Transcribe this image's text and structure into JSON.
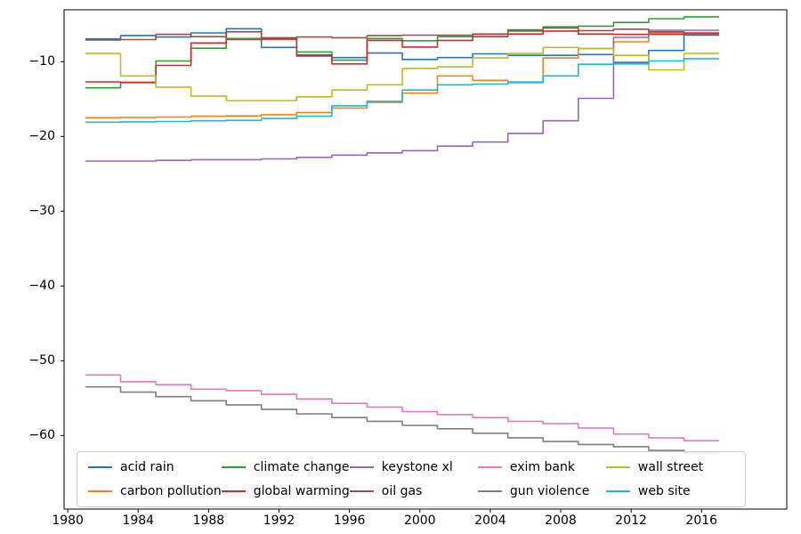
{
  "chart_data": {
    "type": "line",
    "step_mode": "post",
    "title": "",
    "xlabel": "",
    "ylabel": "",
    "grid": false,
    "legend_position": "lower-center-inside",
    "legend_columns": 5,
    "x": [
      1981,
      1983,
      1985,
      1987,
      1989,
      1991,
      1993,
      1995,
      1997,
      1999,
      2001,
      2003,
      2005,
      2007,
      2009,
      2011,
      2013,
      2015,
      2017
    ],
    "xtick_values": [
      1980,
      1984,
      1988,
      1992,
      1996,
      2000,
      2004,
      2008,
      2012,
      2016
    ],
    "xtick_labels": [
      "1980",
      "1984",
      "1988",
      "1992",
      "1996",
      "2000",
      "2004",
      "2008",
      "2012",
      "2016"
    ],
    "ytick_values": [
      -10,
      -20,
      -30,
      -40,
      -50,
      -60
    ],
    "ytick_labels": [
      "−10",
      "−20",
      "−30",
      "−40",
      "−50",
      "−60"
    ],
    "xlim": [
      1979.79,
      2020.84
    ],
    "ylim": [
      -69.84,
      -3.06
    ],
    "series": [
      {
        "name": "acid rain",
        "color": "#1f77b4",
        "values": [
          -7.1,
          -6.5,
          -6.7,
          -6.15,
          -5.6,
          -8.1,
          -9.1,
          -9.45,
          -8.85,
          -9.7,
          -9.45,
          -8.95,
          -9.15,
          -9.15,
          -9.05,
          -10.1,
          -8.5,
          -6.3,
          -6.3
        ]
      },
      {
        "name": "carbon pollution",
        "color": "#ff7f0e",
        "values": [
          -17.5,
          -17.45,
          -17.4,
          -17.3,
          -17.25,
          -17.1,
          -16.8,
          -16.2,
          -15.45,
          -14.2,
          -11.9,
          -12.5,
          -12.7,
          -9.5,
          -8.25,
          -7.35,
          -6.15,
          -6.2,
          -6.2
        ]
      },
      {
        "name": "climate change",
        "color": "#2ca02c",
        "values": [
          -13.5,
          -12.75,
          -9.9,
          -8.2,
          -6.9,
          -6.9,
          -8.7,
          -9.8,
          -6.9,
          -7.2,
          -6.65,
          -6.3,
          -5.9,
          -5.35,
          -5.25,
          -4.75,
          -4.25,
          -4.0,
          -4.0
        ]
      },
      {
        "name": "global warming",
        "color": "#d62728",
        "values": [
          -12.7,
          -12.8,
          -10.5,
          -7.5,
          -6.0,
          -7.0,
          -9.25,
          -10.3,
          -7.15,
          -8.05,
          -7.15,
          -6.65,
          -6.3,
          -5.9,
          -6.3,
          -6.35,
          -6.35,
          -6.15,
          -6.15
        ]
      },
      {
        "name": "keystone xl",
        "color": "#9467bd",
        "values": [
          -23.3,
          -23.3,
          -23.2,
          -23.1,
          -23.1,
          -23.0,
          -22.8,
          -22.5,
          -22.2,
          -21.9,
          -21.3,
          -20.75,
          -19.6,
          -17.9,
          -14.9,
          -6.75,
          -5.8,
          -5.8,
          -5.8
        ]
      },
      {
        "name": "oil gas",
        "color": "#8c564b",
        "values": [
          -6.95,
          -7.05,
          -6.35,
          -6.65,
          -7.05,
          -6.8,
          -6.7,
          -6.8,
          -6.5,
          -6.45,
          -6.45,
          -6.35,
          -5.75,
          -5.5,
          -5.85,
          -5.65,
          -6.0,
          -6.45,
          -6.45
        ]
      },
      {
        "name": "exim bank",
        "color": "#e377c2",
        "values": [
          -51.9,
          -52.8,
          -53.2,
          -53.8,
          -54.0,
          -54.5,
          -55.1,
          -55.7,
          -56.2,
          -56.8,
          -57.2,
          -57.6,
          -58.1,
          -58.4,
          -59.0,
          -59.8,
          -60.3,
          -60.7,
          -60.7
        ]
      },
      {
        "name": "gun violence",
        "color": "#7f7f7f",
        "values": [
          -53.5,
          -54.2,
          -54.8,
          -55.35,
          -55.9,
          -56.5,
          -57.1,
          -57.6,
          -58.1,
          -58.65,
          -59.1,
          -59.7,
          -60.3,
          -60.8,
          -61.2,
          -61.5,
          -62.0,
          -62.3,
          -62.3
        ]
      },
      {
        "name": "wall street",
        "color": "#bcbd22",
        "values": [
          -8.9,
          -11.9,
          -13.4,
          -14.6,
          -15.2,
          -15.2,
          -14.7,
          -13.8,
          -13.1,
          -10.9,
          -10.7,
          -9.5,
          -8.9,
          -8.1,
          -8.25,
          -9.15,
          -11.1,
          -8.9,
          -8.9
        ]
      },
      {
        "name": "web site",
        "color": "#17becf",
        "values": [
          -18.1,
          -18.05,
          -18.0,
          -17.9,
          -17.85,
          -17.6,
          -17.3,
          -15.9,
          -15.3,
          -13.8,
          -13.1,
          -13.0,
          -12.8,
          -11.9,
          -10.35,
          -10.3,
          -9.9,
          -9.6,
          -9.6
        ]
      }
    ]
  }
}
